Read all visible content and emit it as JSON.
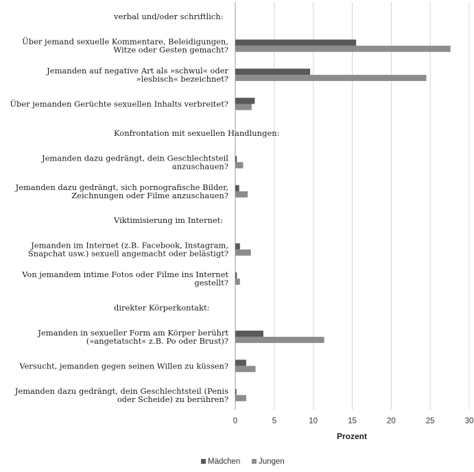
{
  "chart_data": {
    "type": "bar",
    "orientation": "horizontal",
    "xlabel": "Prozent",
    "xlim": [
      0,
      30
    ],
    "xticks": [
      0,
      5,
      10,
      15,
      20,
      25,
      30
    ],
    "grid": true,
    "legend_position": "bottom-center",
    "series": [
      {
        "name": "Mädchen",
        "color": "#595959"
      },
      {
        "name": "Jungen",
        "color": "#8c8c8c"
      }
    ],
    "sections": [
      {
        "title": "verbal und/oder schriftlich:",
        "items": [
          {
            "lines": [
              "Über jemand sexuelle Kommentare, Beleidigungen,",
              "Witze oder Gesten gemacht?"
            ],
            "values": [
              15.5,
              27.6
            ]
          },
          {
            "lines": [
              "Jemanden auf negative Art als »schwul« oder",
              "»lesbisch« bezeichnet?"
            ],
            "values": [
              9.6,
              24.5
            ]
          },
          {
            "lines": [
              "Über jemanden Gerüchte sexuellen Inhalts verbreitet?"
            ],
            "values": [
              2.5,
              2.1
            ]
          }
        ]
      },
      {
        "title": "Konfrontation mit sexuellen Handlungen:",
        "items": [
          {
            "lines": [
              "Jemanden dazu gedrängt, dein Geschlechtsteil",
              "anzuschauen?"
            ],
            "values": [
              0.2,
              1.0
            ]
          },
          {
            "lines": [
              "Jemanden dazu gedrängt, sich pornografische Bilder,",
              "Zeichnungen oder Filme anzuschauen?"
            ],
            "values": [
              0.5,
              1.6
            ]
          }
        ]
      },
      {
        "title": "Viktimisierung im Internet:",
        "items": [
          {
            "lines": [
              "Jemanden im Internet (z.B. Facebook, Instagram,",
              "Snapchat usw.) sexuell angemacht oder belästigt?"
            ],
            "values": [
              0.6,
              2.0
            ]
          },
          {
            "lines": [
              "Von jemandem intime Fotos oder Filme ins Internet",
              "gestellt?"
            ],
            "values": [
              0.2,
              0.6
            ]
          }
        ]
      },
      {
        "title": "direkter Körperkontakt:",
        "items": [
          {
            "lines": [
              "Jemanden in sexueller Form am Körper berührt",
              "(»angetatscht« z.B. Po oder Brust)?"
            ],
            "values": [
              3.6,
              11.4
            ]
          },
          {
            "lines": [
              "Versucht, jemanden gegen seinen Willen zu küssen?"
            ],
            "values": [
              1.4,
              2.6
            ]
          },
          {
            "lines": [
              "Jemanden dazu gedrängt, dein Geschlechtsteil (Penis",
              "oder Scheide) zu berühren?"
            ],
            "values": [
              0.15,
              1.4
            ]
          }
        ]
      }
    ]
  }
}
